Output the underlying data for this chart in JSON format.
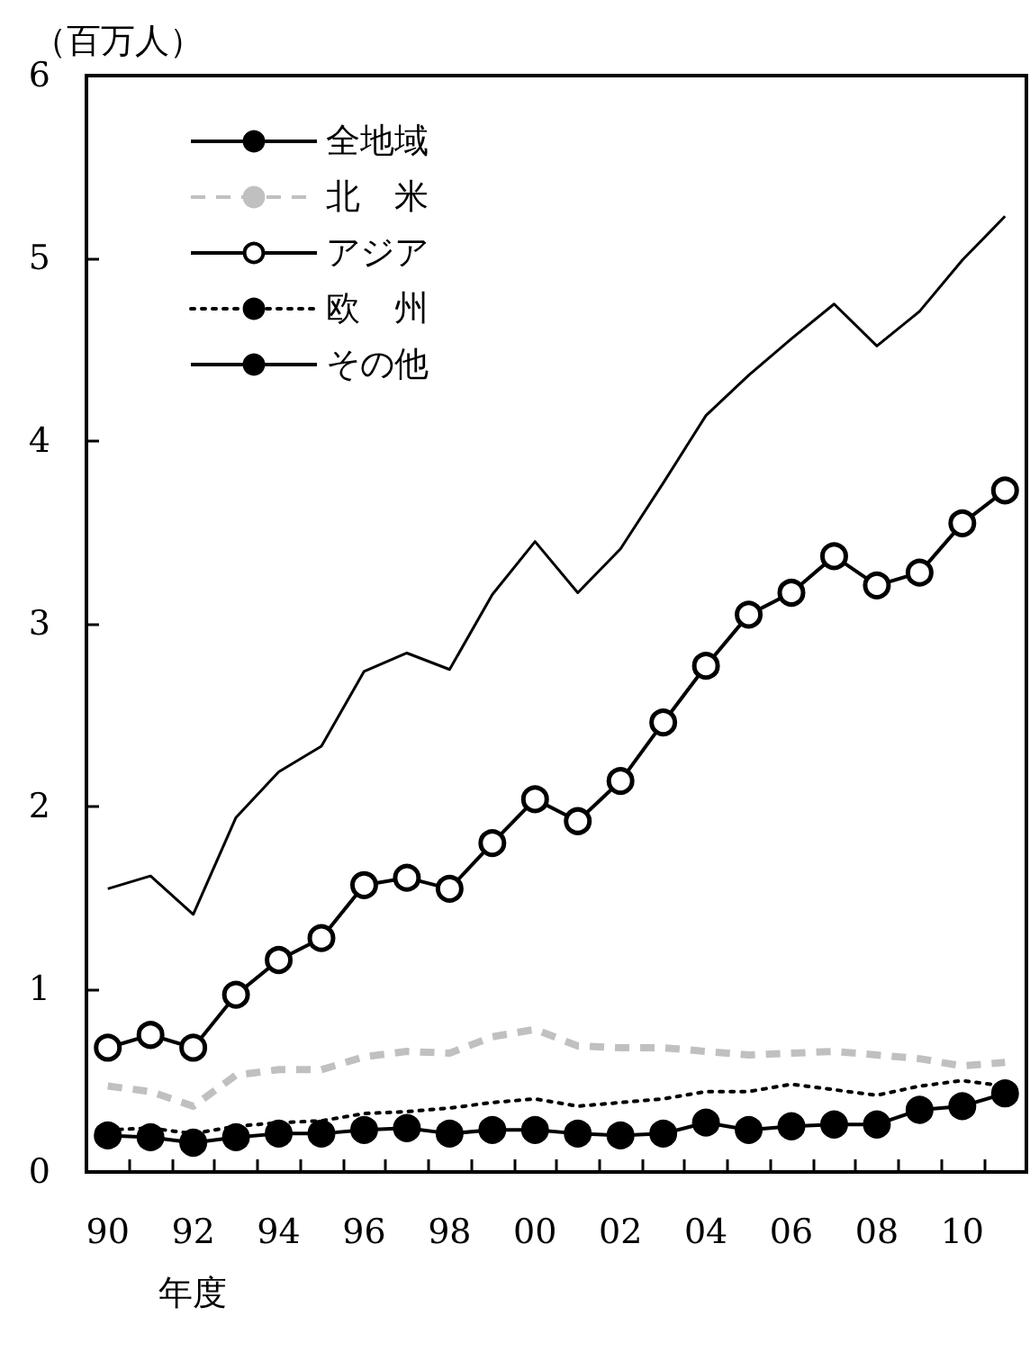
{
  "chart_data": {
    "type": "line",
    "ylabel": "（百万人）",
    "xlabel": "年度",
    "categories": [
      "90",
      null,
      "92",
      null,
      "94",
      null,
      "96",
      null,
      "98",
      null,
      "00",
      null,
      "02",
      null,
      "04",
      null,
      "06",
      null,
      "08",
      null,
      "10",
      null
    ],
    "ylim": [
      0,
      6
    ],
    "yticks": [
      0,
      1,
      2,
      3,
      4,
      5,
      6
    ],
    "grid": false,
    "legend": "top left",
    "series": [
      {
        "name": "全地域",
        "color": "#000000",
        "line_style": "solid",
        "marker": "none",
        "values": [
          1.55,
          1.62,
          1.41,
          1.94,
          2.19,
          2.33,
          2.74,
          2.84,
          2.75,
          3.16,
          3.45,
          3.17,
          3.41,
          3.77,
          4.14,
          4.36,
          4.56,
          4.75,
          4.52,
          4.71,
          4.99,
          5.23
        ]
      },
      {
        "name": "北　米",
        "color": "#c0c0c0",
        "line_style": "dashed",
        "marker": "none",
        "values": [
          0.47,
          0.44,
          0.36,
          0.53,
          0.56,
          0.56,
          0.63,
          0.66,
          0.65,
          0.74,
          0.78,
          0.69,
          0.68,
          0.68,
          0.66,
          0.64,
          0.65,
          0.66,
          0.64,
          0.62,
          0.58,
          0.6
        ]
      },
      {
        "name": "アジア",
        "color": "#000000",
        "line_style": "solid",
        "marker": "circle",
        "values": [
          0.68,
          0.75,
          0.68,
          0.97,
          1.16,
          1.28,
          1.57,
          1.61,
          1.55,
          1.8,
          2.04,
          1.92,
          2.14,
          2.46,
          2.77,
          3.05,
          3.17,
          3.37,
          3.21,
          3.28,
          3.55,
          3.73
        ]
      },
      {
        "name": "欧　州",
        "color": "#000000",
        "line_style": "dotted",
        "marker": "none",
        "values": [
          0.23,
          0.24,
          0.21,
          0.25,
          0.27,
          0.28,
          0.32,
          0.33,
          0.35,
          0.38,
          0.4,
          0.36,
          0.38,
          0.4,
          0.44,
          0.44,
          0.48,
          0.45,
          0.42,
          0.47,
          0.5,
          0.47
        ]
      },
      {
        "name": "その他",
        "color": "#000000",
        "line_style": "solid",
        "marker": "filled-circle",
        "values": [
          0.2,
          0.19,
          0.16,
          0.19,
          0.21,
          0.21,
          0.23,
          0.24,
          0.21,
          0.23,
          0.23,
          0.21,
          0.2,
          0.21,
          0.27,
          0.23,
          0.25,
          0.26,
          0.26,
          0.34,
          0.36,
          0.43
        ]
      }
    ]
  }
}
